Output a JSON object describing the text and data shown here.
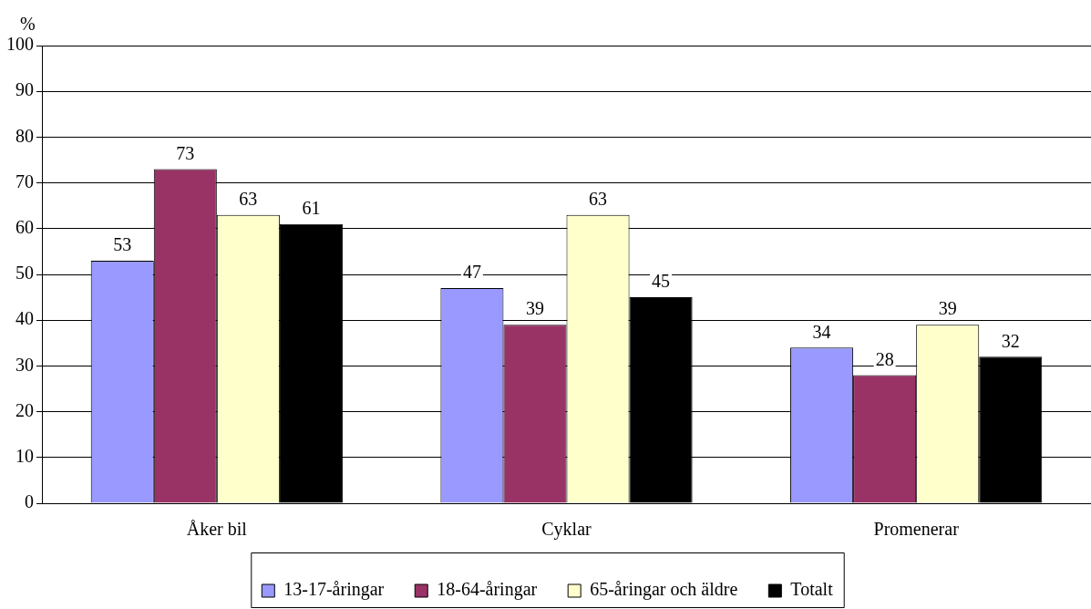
{
  "chart_data": {
    "type": "bar",
    "ylabel": "%",
    "categories": [
      "Åker bil",
      "Cyklar",
      "Promenerar"
    ],
    "series": [
      {
        "name": "13-17-åringar",
        "color": "#9999ff",
        "values": [
          53,
          47,
          34
        ]
      },
      {
        "name": "18-64-åringar",
        "color": "#993366",
        "values": [
          73,
          39,
          28
        ]
      },
      {
        "name": "65-åringar och äldre",
        "color": "#ffffcc",
        "values": [
          63,
          63,
          39
        ]
      },
      {
        "name": "Totalt",
        "color": "#000000",
        "values": [
          61,
          45,
          32
        ]
      }
    ],
    "ylim": [
      0,
      100
    ],
    "yticks": [
      0,
      10,
      20,
      30,
      40,
      50,
      60,
      70,
      80,
      90,
      100
    ],
    "grid": "y",
    "legend": "bottom",
    "data_labels": true
  }
}
